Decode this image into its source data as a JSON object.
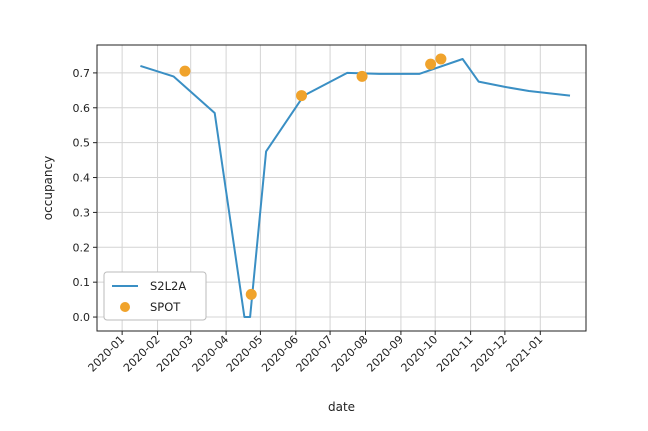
{
  "chart_data": {
    "type": "line",
    "xlabel": "date",
    "ylabel": "occupancy",
    "x_ticks": [
      "2020-01",
      "2020-02",
      "2020-03",
      "2020-04",
      "2020-05",
      "2020-06",
      "2020-07",
      "2020-08",
      "2020-09",
      "2020-10",
      "2020-11",
      "2020-12",
      "2021-01"
    ],
    "y_ticks": [
      "0.0",
      "0.1",
      "0.2",
      "0.3",
      "0.4",
      "0.5",
      "0.6",
      "0.7"
    ],
    "xlim": [
      "2019-12-10",
      "2021-02-10"
    ],
    "ylim": [
      -0.04,
      0.78
    ],
    "grid": true,
    "legend_position": "lower-left",
    "series": [
      {
        "name": "S2L2A",
        "kind": "line",
        "color": "#3a8fc4",
        "x": [
          "2020-01-17",
          "2020-02-15",
          "2020-03-22",
          "2020-04-17",
          "2020-04-22",
          "2020-05-06",
          "2020-06-08",
          "2020-07-16",
          "2020-08-13",
          "2020-09-17",
          "2020-10-25",
          "2020-11-08",
          "2020-12-01",
          "2020-12-22",
          "2021-01-27"
        ],
        "y": [
          0.72,
          0.69,
          0.585,
          0.0,
          0.0,
          0.475,
          0.635,
          0.7,
          0.697,
          0.697,
          0.74,
          0.675,
          0.66,
          0.648,
          0.635
        ]
      },
      {
        "name": "SPOT",
        "kind": "scatter",
        "color": "#f0a32c",
        "x": [
          "2020-02-25",
          "2020-04-23",
          "2020-06-06",
          "2020-07-29",
          "2020-09-27",
          "2020-10-06"
        ],
        "y": [
          0.705,
          0.065,
          0.635,
          0.69,
          0.725,
          0.74
        ]
      }
    ]
  }
}
